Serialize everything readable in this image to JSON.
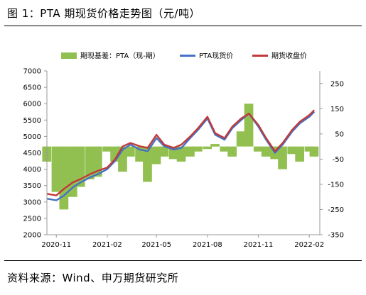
{
  "header": {
    "title": "图 1：PTA 期现货价格走势图（元/吨）"
  },
  "footer": {
    "source": "资料来源：Wind、申万期货研究所"
  },
  "chart_data": {
    "type": "line",
    "title": "",
    "xlabel": "",
    "ylabel": "",
    "x_tick_labels": [
      "2020-11",
      "2021-02",
      "2021-05",
      "2021-08",
      "2021-11",
      "2022-02"
    ],
    "y_left": {
      "lim": [
        2000,
        7000
      ],
      "ticks": [
        2000,
        2500,
        3000,
        3500,
        4000,
        4500,
        5000,
        5500,
        6000,
        6500,
        7000
      ]
    },
    "y_right": {
      "lim": [
        -350,
        300
      ],
      "ticks": [
        -350,
        -250,
        -150,
        -50,
        50,
        150,
        250
      ]
    },
    "grid": false,
    "legend_position": "top",
    "x": [
      "2020-10-15",
      "2020-11-01",
      "2020-11-15",
      "2020-12-01",
      "2020-12-15",
      "2021-01-01",
      "2021-01-15",
      "2021-02-01",
      "2021-02-15",
      "2021-03-01",
      "2021-03-15",
      "2021-04-01",
      "2021-04-15",
      "2021-05-01",
      "2021-05-15",
      "2021-06-01",
      "2021-06-15",
      "2021-07-01",
      "2021-07-15",
      "2021-08-01",
      "2021-08-15",
      "2021-09-01",
      "2021-09-15",
      "2021-10-01",
      "2021-10-15",
      "2021-11-01",
      "2021-11-15",
      "2021-12-01",
      "2021-12-15",
      "2022-01-01",
      "2022-01-15",
      "2022-02-01",
      "2022-02-10"
    ],
    "series": [
      {
        "name": "期现基差：PTA（现-期）",
        "axis": "right",
        "type": "area",
        "color": "#92c050",
        "values": [
          -60,
          -180,
          -250,
          -200,
          -160,
          -130,
          -120,
          -20,
          -60,
          -100,
          -40,
          -60,
          -140,
          -70,
          -40,
          -50,
          -60,
          -40,
          -20,
          -10,
          10,
          -20,
          -40,
          60,
          170,
          -20,
          -40,
          -50,
          -90,
          -30,
          -60,
          -20,
          -40
        ]
      },
      {
        "name": "PTA现货价",
        "axis": "left",
        "type": "line",
        "color": "#4472c4",
        "values": [
          3100,
          3050,
          3200,
          3450,
          3600,
          3750,
          3850,
          4000,
          4250,
          4600,
          4750,
          4600,
          4550,
          4950,
          4700,
          4600,
          4650,
          4950,
          5200,
          5550,
          5050,
          4900,
          5250,
          5500,
          5700,
          5300,
          4900,
          4500,
          4750,
          5150,
          5400,
          5600,
          5750
        ]
      },
      {
        "name": "期货收盘价",
        "axis": "left",
        "type": "line",
        "color": "#c0393b",
        "values": [
          3250,
          3200,
          3400,
          3600,
          3700,
          3850,
          3950,
          4050,
          4300,
          4700,
          4800,
          4700,
          4650,
          5050,
          4750,
          4650,
          4750,
          5000,
          5250,
          5600,
          5100,
          4950,
          5300,
          5550,
          5700,
          5350,
          4950,
          4550,
          4800,
          5200,
          5450,
          5650,
          5800
        ]
      }
    ]
  }
}
